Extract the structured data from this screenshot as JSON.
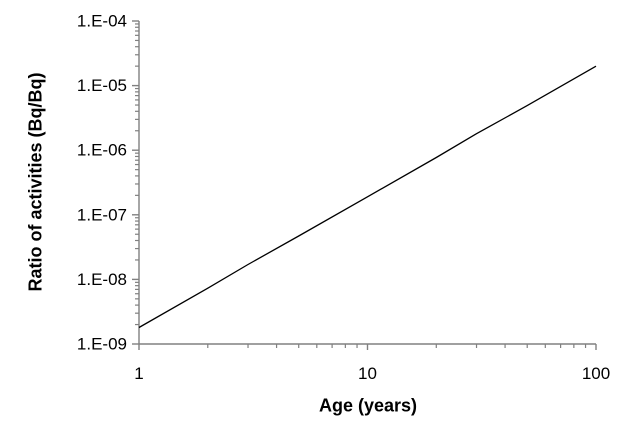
{
  "chart_data": {
    "type": "line",
    "title": "",
    "xlabel": "Age (years)",
    "ylabel": "Ratio of activities (Bq/Bq)",
    "x_scale": "log",
    "y_scale": "log",
    "xlim": [
      1,
      100
    ],
    "ylim": [
      1e-09,
      0.0001
    ],
    "grid": false,
    "legend_position": "none",
    "minor_ticks": "log-decades-2-to-9-outside",
    "x_ticks": [
      {
        "value": 1,
        "label": "1"
      },
      {
        "value": 10,
        "label": "10"
      },
      {
        "value": 100,
        "label": "100"
      }
    ],
    "y_ticks": [
      {
        "value": 0.0001,
        "label": "1.E-04"
      },
      {
        "value": 1e-05,
        "label": "1.E-05"
      },
      {
        "value": 1e-06,
        "label": "1.E-06"
      },
      {
        "value": 1e-07,
        "label": "1.E-07"
      },
      {
        "value": 1e-08,
        "label": "1.E-08"
      },
      {
        "value": 1e-09,
        "label": "1.E-09"
      }
    ],
    "series": [
      {
        "name": "Ratio of activities",
        "color": "#000000",
        "x": [
          1,
          2,
          3,
          5,
          10,
          20,
          30,
          50,
          100
        ],
        "y": [
          1.8e-09,
          7.3e-09,
          1.7e-08,
          4.7e-08,
          1.9e-07,
          7.7e-07,
          1.8e-06,
          4.9e-06,
          2e-05
        ]
      }
    ],
    "colors": {
      "axis": "#808080",
      "line": "#000000",
      "text": "#000000",
      "background": "#ffffff"
    }
  }
}
